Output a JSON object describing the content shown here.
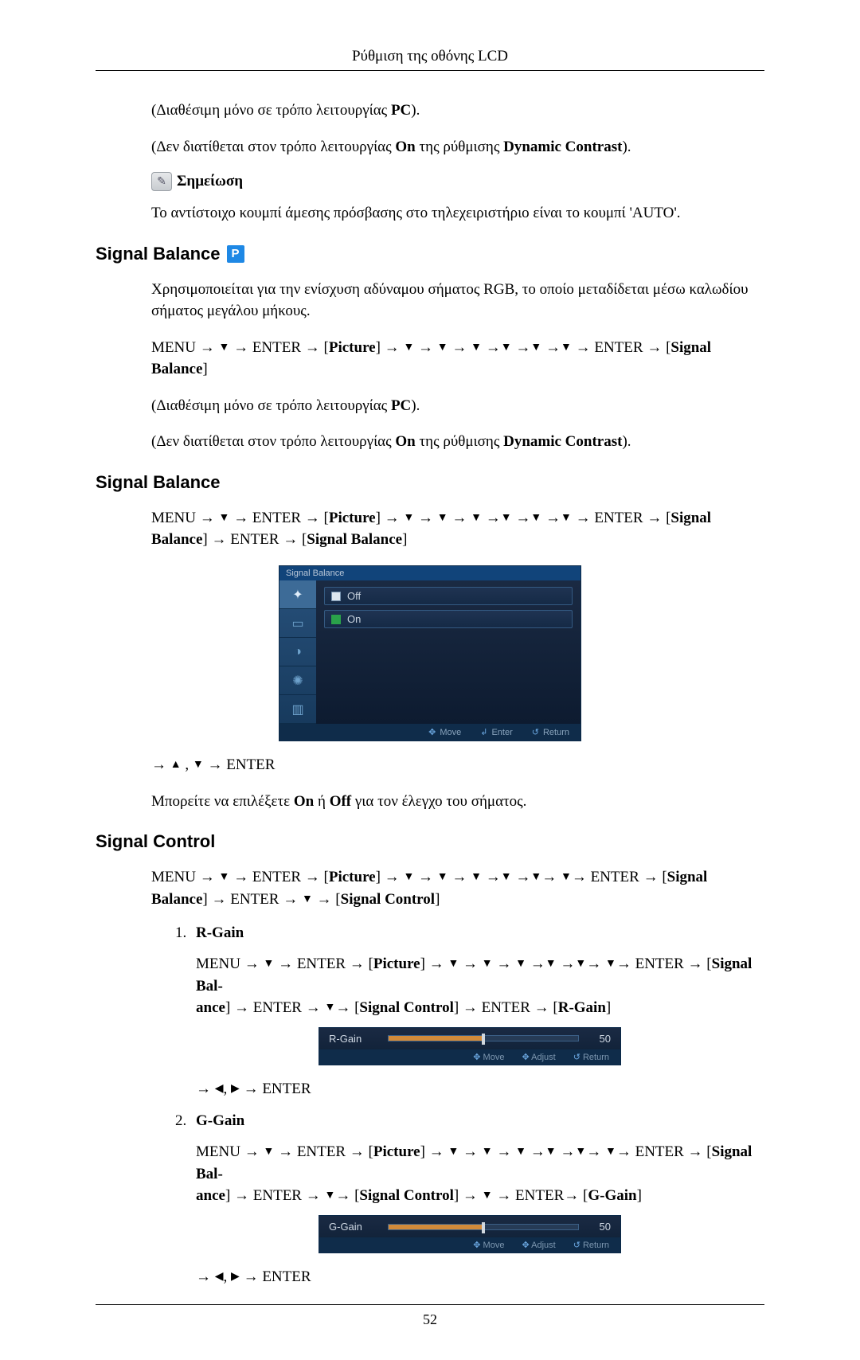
{
  "header": {
    "title": "Ρύθμιση της οθόνης LCD"
  },
  "intro": {
    "p1_a": "(Διαθέσιμη μόνο σε τρόπο λειτουργίας ",
    "p1_b": "PC",
    "p1_c": ").",
    "p2_a": "(Δεν διατίθεται στον τρόπο λειτουργίας ",
    "p2_b": "On",
    "p2_c": " της ρύθμισης ",
    "p2_d": "Dynamic Contrast",
    "p2_e": ")."
  },
  "note": {
    "glyph": "✎",
    "label": "Σημείωση",
    "text": "Το αντίστοιχο κουμπί άμεσης πρόσβασης στο τηλεχειριστήριο είναι το κουμπί 'AUTO'."
  },
  "pbadge": "P",
  "arrow_down": "▼",
  "arrow_up": "▲",
  "arrow_left": "◀",
  "arrow_right": "▶",
  "sec1": {
    "title": "Signal Balance",
    "desc": "Χρησιμοποιείται για την ενίσχυση αδύναμου σήματος RGB, το οποίο μεταδίδεται μέσω καλωδίου σήματος μεγάλου μήκους.",
    "path_menu": "MENU",
    "path_enter": "ENTER",
    "path_arrow": " → ",
    "path_picture": "Picture",
    "path_signal_balance": "Signal Balance",
    "avail_a": "(Διαθέσιμη μόνο σε τρόπο λειτουργίας ",
    "avail_b": "PC",
    "avail_c": ").",
    "na_a": "(Δεν διατίθεται στον τρόπο λειτουργίας ",
    "na_b": "On",
    "na_c": " της ρύθμισης ",
    "na_d": "Dynamic Contrast",
    "na_e": ")."
  },
  "sec2": {
    "title": "Signal Balance",
    "osd": {
      "title": "Signal Balance",
      "off_label": "Off",
      "on_label": "On",
      "hints": {
        "move": "Move",
        "enter": "Enter",
        "return": "Return"
      },
      "colors": {
        "title_bg": "#11447a",
        "side_bg_top": "#27507a",
        "side_bg_bot": "#173a5d",
        "main_bg_top": "#1a2a43",
        "main_bg_bot": "#0d1b30",
        "opt_border": "#345a82",
        "foot_bg": "#0f2c4a"
      },
      "side_icons": [
        "✦",
        "▭",
        "◑",
        "✺",
        "▥"
      ]
    },
    "after_text": " → ENTER",
    "comma": " , ",
    "choose_a": "Μπορείτε να επιλέξετε ",
    "choose_on": "On",
    "choose_mid": " ή ",
    "choose_off": "Off",
    "choose_b": " για τον έλεγχο του σήματος."
  },
  "sec3": {
    "title": "Signal Control",
    "signal_control_label": "Signal Control",
    "items": [
      {
        "num": "1.",
        "label": "R-Gain",
        "gain_key": "R-Gain",
        "slider": {
          "label": "R-Gain",
          "value": 50,
          "max": 100,
          "fill_color": "#d18a3a"
        },
        "after": " → ENTER"
      },
      {
        "num": "2.",
        "label": "G-Gain",
        "gain_key": "G-Gain",
        "slider": {
          "label": "G-Gain",
          "value": 50,
          "max": 100,
          "fill_color": "#d18a3a"
        },
        "after": " → ENTER"
      }
    ],
    "slider_hints": {
      "move": "Move",
      "adjust": "Adjust",
      "return": "Return"
    }
  },
  "page_number": "52"
}
